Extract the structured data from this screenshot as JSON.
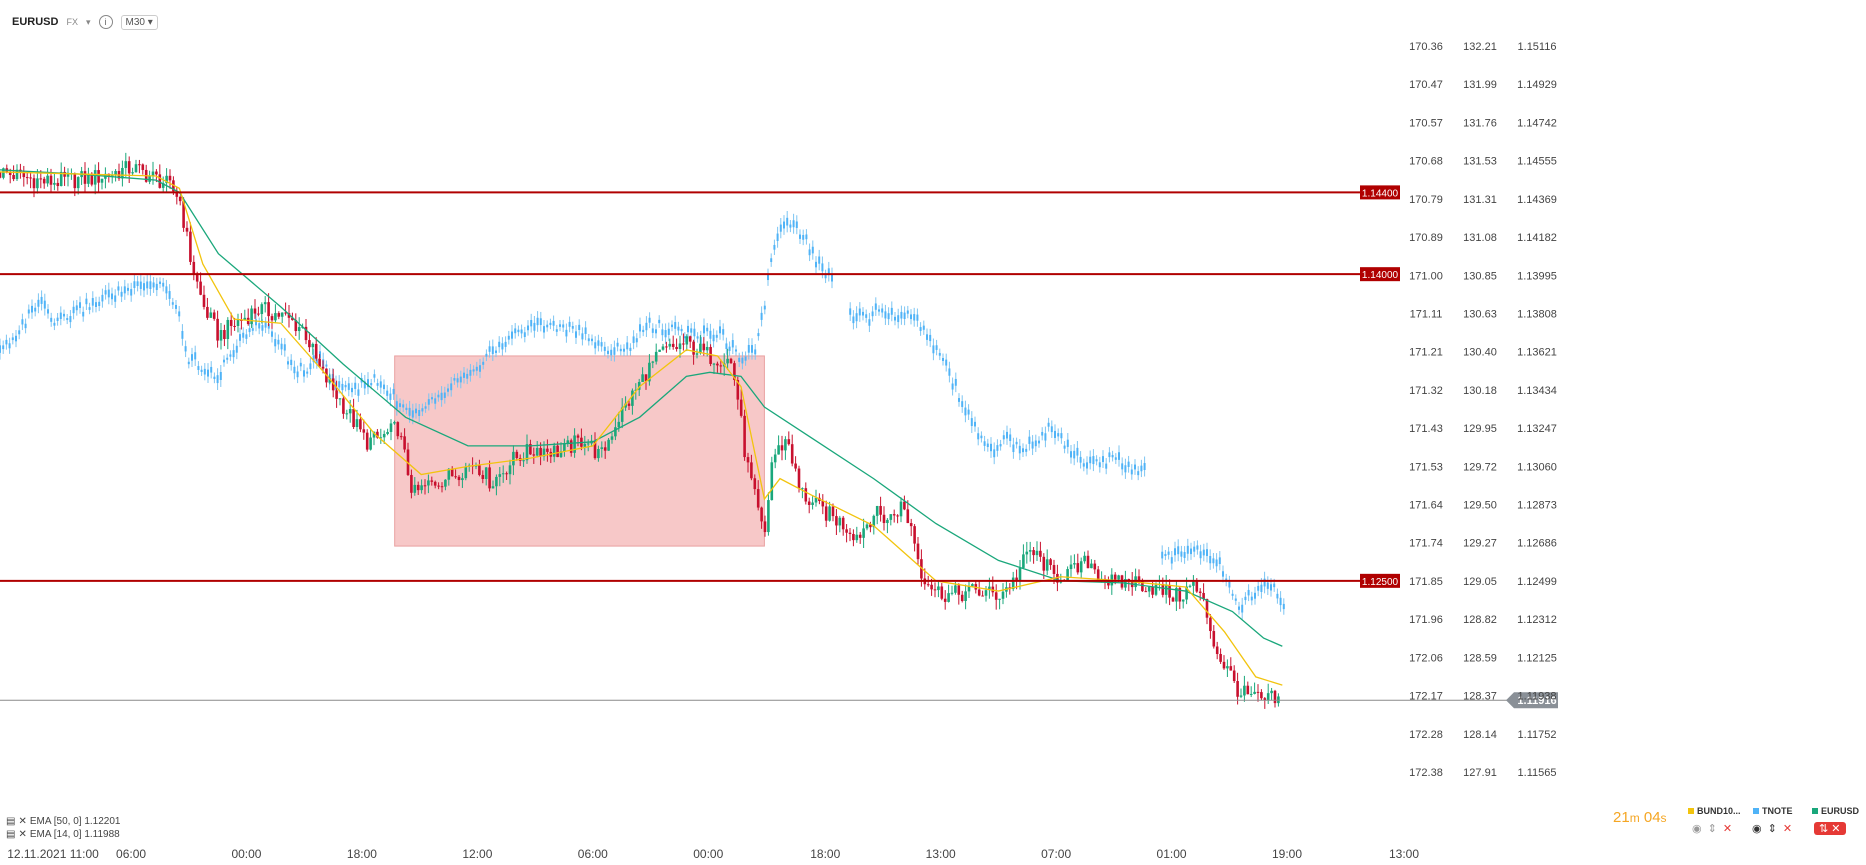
{
  "header": {
    "symbol": "EURUSD",
    "market": "FX",
    "info_icon": "info-icon",
    "timeframe": "M30"
  },
  "indicators": [
    {
      "label": "EMA [50, 0] 1.12201",
      "color": "#1aa77b"
    },
    {
      "label": "EMA [14, 0] 1.11988",
      "color": "#f2c40e"
    }
  ],
  "timer": {
    "minutes": "21",
    "m_unit": "m",
    "seconds": "04",
    "s_unit": "s"
  },
  "instruments": [
    {
      "name": "BUND10...",
      "color": "#f2c40e"
    },
    {
      "name": "TNOTE",
      "color": "#4fb3f7"
    },
    {
      "name": "EURUSD",
      "color": "#1aa77b"
    }
  ],
  "chart_data": {
    "type": "candlestick",
    "title": "",
    "x_tick_labels": [
      "12.11.2021  11:00",
      "06:00",
      "00:00",
      "18:00",
      "12:00",
      "06:00",
      "00:00",
      "18:00",
      "13:00",
      "07:00",
      "01:00",
      "19:00",
      "13:00"
    ],
    "y_axes": [
      {
        "name": "BUND10",
        "ticks": [
          "170.36",
          "170.47",
          "170.57",
          "170.68",
          "170.79",
          "170.89",
          "171.00",
          "171.11",
          "171.21",
          "171.32",
          "171.43",
          "171.53",
          "171.64",
          "171.74",
          "171.85",
          "171.96",
          "172.06",
          "172.17",
          "172.28",
          "172.38"
        ]
      },
      {
        "name": "TNOTE",
        "ticks": [
          "132.21",
          "131.99",
          "131.76",
          "131.53",
          "131.31",
          "131.08",
          "130.85",
          "130.63",
          "130.40",
          "130.18",
          "129.95",
          "129.72",
          "129.50",
          "129.27",
          "129.05",
          "128.82",
          "128.59",
          "128.37",
          "128.14",
          "127.91"
        ]
      },
      {
        "name": "EURUSD",
        "ticks": [
          "1.15116",
          "1.14929",
          "1.14742",
          "1.14555",
          "1.14369",
          "1.14182",
          "1.13995",
          "1.13808",
          "1.13621",
          "1.13434",
          "1.13247",
          "1.13060",
          "1.12873",
          "1.12686",
          "1.12499",
          "1.12312",
          "1.12125",
          "1.11938",
          "1.11752",
          "1.11565"
        ]
      }
    ],
    "eurusd_range": [
      1.11565,
      1.15116
    ],
    "horizontal_levels": [
      {
        "label": "1.14400",
        "value": 1.144,
        "color": "#b00000"
      },
      {
        "label": "1.14000",
        "value": 1.14,
        "color": "#b00000"
      },
      {
        "label": "1.12500",
        "value": 1.125,
        "color": "#b00000"
      }
    ],
    "current_price": {
      "label": "1.11916",
      "value": 1.11916
    },
    "highlight_zone": {
      "x_from": 0.253,
      "x_to": 0.49,
      "y_top": 1.136,
      "y_bottom": 1.1267
    },
    "eurusd_path": [
      [
        0,
        1.145
      ],
      [
        0.03,
        1.1445
      ],
      [
        0.06,
        1.1447
      ],
      [
        0.085,
        1.1452
      ],
      [
        0.105,
        1.1445
      ],
      [
        0.115,
        1.1438
      ],
      [
        0.122,
        1.1408
      ],
      [
        0.13,
        1.1385
      ],
      [
        0.14,
        1.137
      ],
      [
        0.155,
        1.1378
      ],
      [
        0.165,
        1.1383
      ],
      [
        0.18,
        1.138
      ],
      [
        0.195,
        1.1373
      ],
      [
        0.205,
        1.1353
      ],
      [
        0.215,
        1.1342
      ],
      [
        0.225,
        1.133
      ],
      [
        0.235,
        1.1318
      ],
      [
        0.245,
        1.132
      ],
      [
        0.255,
        1.1325
      ],
      [
        0.265,
        1.1292
      ],
      [
        0.275,
        1.1297
      ],
      [
        0.29,
        1.1302
      ],
      [
        0.305,
        1.1308
      ],
      [
        0.315,
        1.1298
      ],
      [
        0.33,
        1.131
      ],
      [
        0.345,
        1.1315
      ],
      [
        0.36,
        1.1313
      ],
      [
        0.375,
        1.132
      ],
      [
        0.385,
        1.131
      ],
      [
        0.395,
        1.1328
      ],
      [
        0.405,
        1.134
      ],
      [
        0.415,
        1.1353
      ],
      [
        0.425,
        1.1362
      ],
      [
        0.44,
        1.1366
      ],
      [
        0.455,
        1.136
      ],
      [
        0.468,
        1.1358
      ],
      [
        0.472,
        1.1345
      ],
      [
        0.478,
        1.131
      ],
      [
        0.484,
        1.129
      ],
      [
        0.49,
        1.127
      ],
      [
        0.495,
        1.131
      ],
      [
        0.505,
        1.132
      ],
      [
        0.512,
        1.1295
      ],
      [
        0.52,
        1.1288
      ],
      [
        0.53,
        1.1283
      ],
      [
        0.54,
        1.1278
      ],
      [
        0.55,
        1.1272
      ],
      [
        0.56,
        1.1283
      ],
      [
        0.57,
        1.128
      ],
      [
        0.578,
        1.1287
      ],
      [
        0.585,
        1.1275
      ],
      [
        0.59,
        1.1255
      ],
      [
        0.6,
        1.1245
      ],
      [
        0.61,
        1.1243
      ],
      [
        0.625,
        1.1245
      ],
      [
        0.64,
        1.1243
      ],
      [
        0.65,
        1.125
      ],
      [
        0.66,
        1.1265
      ],
      [
        0.67,
        1.1258
      ],
      [
        0.675,
        1.1252
      ],
      [
        0.69,
        1.1255
      ],
      [
        0.698,
        1.126
      ],
      [
        0.705,
        1.1253
      ],
      [
        0.715,
        1.1248
      ],
      [
        0.725,
        1.125
      ],
      [
        0.735,
        1.1248
      ],
      [
        0.745,
        1.1245
      ],
      [
        0.755,
        1.1242
      ],
      [
        0.765,
        1.1248
      ],
      [
        0.772,
        1.1238
      ],
      [
        0.78,
        1.1215
      ],
      [
        0.788,
        1.1205
      ],
      [
        0.795,
        1.1195
      ],
      [
        0.803,
        1.1193
      ],
      [
        0.81,
        1.1191
      ],
      [
        0.815,
        1.1192
      ],
      [
        0.82,
        1.1191
      ]
    ],
    "tnote_path": [
      [
        0,
        1.1362
      ],
      [
        0.015,
        1.1375
      ],
      [
        0.025,
        1.1387
      ],
      [
        0.035,
        1.1375
      ],
      [
        0.05,
        1.1382
      ],
      [
        0.07,
        1.139
      ],
      [
        0.09,
        1.1393
      ],
      [
        0.105,
        1.1395
      ],
      [
        0.113,
        1.1385
      ],
      [
        0.12,
        1.136
      ],
      [
        0.13,
        1.1355
      ],
      [
        0.14,
        1.135
      ],
      [
        0.155,
        1.137
      ],
      [
        0.17,
        1.1376
      ],
      [
        0.18,
        1.1365
      ],
      [
        0.19,
        1.1352
      ],
      [
        0.205,
        1.1358
      ],
      [
        0.215,
        1.1347
      ],
      [
        0.225,
        1.1343
      ],
      [
        0.24,
        1.1348
      ],
      [
        0.255,
        1.1338
      ],
      [
        0.265,
        1.1333
      ],
      [
        0.28,
        1.134
      ],
      [
        0.295,
        1.135
      ],
      [
        0.31,
        1.1358
      ],
      [
        0.325,
        1.1368
      ],
      [
        0.34,
        1.1375
      ],
      [
        0.355,
        1.1375
      ],
      [
        0.37,
        1.1372
      ],
      [
        0.385,
        1.1365
      ],
      [
        0.4,
        1.1362
      ],
      [
        0.415,
        1.1375
      ],
      [
        0.43,
        1.1373
      ],
      [
        0.445,
        1.137
      ],
      [
        0.46,
        1.1372
      ],
      [
        0.475,
        1.136
      ],
      [
        0.485,
        1.1363
      ],
      [
        0.49,
        1.1385
      ],
      [
        0.495,
        1.141
      ],
      [
        0.5,
        1.142
      ],
      [
        0.507,
        1.1425
      ],
      [
        0.515,
        1.1418
      ],
      [
        0.525,
        1.1405
      ],
      [
        0.535,
        1.1395
      ]
    ],
    "tnote_path_2": [
      [
        0.545,
        1.138
      ],
      [
        0.555,
        1.1378
      ],
      [
        0.565,
        1.1383
      ],
      [
        0.575,
        1.1377
      ],
      [
        0.585,
        1.1382
      ],
      [
        0.595,
        1.137
      ],
      [
        0.605,
        1.1358
      ],
      [
        0.615,
        1.134
      ],
      [
        0.625,
        1.1325
      ],
      [
        0.635,
        1.1313
      ],
      [
        0.645,
        1.132
      ],
      [
        0.655,
        1.1312
      ],
      [
        0.665,
        1.132
      ],
      [
        0.675,
        1.1325
      ],
      [
        0.685,
        1.1315
      ],
      [
        0.695,
        1.1308
      ],
      [
        0.705,
        1.1307
      ],
      [
        0.715,
        1.131
      ],
      [
        0.725,
        1.1305
      ],
      [
        0.735,
        1.1305
      ]
    ],
    "tnote_path_3": [
      [
        0.745,
        1.126
      ],
      [
        0.755,
        1.1263
      ],
      [
        0.765,
        1.1268
      ],
      [
        0.775,
        1.1262
      ],
      [
        0.785,
        1.1255
      ],
      [
        0.79,
        1.1245
      ],
      [
        0.795,
        1.1237
      ],
      [
        0.8,
        1.1242
      ],
      [
        0.81,
        1.125
      ],
      [
        0.816,
        1.1247
      ],
      [
        0.823,
        1.124
      ]
    ],
    "ema50_path": [
      [
        0,
        1.1451
      ],
      [
        0.05,
        1.1449
      ],
      [
        0.1,
        1.1446
      ],
      [
        0.115,
        1.144
      ],
      [
        0.14,
        1.141
      ],
      [
        0.18,
        1.1384
      ],
      [
        0.22,
        1.1356
      ],
      [
        0.26,
        1.133
      ],
      [
        0.3,
        1.1316
      ],
      [
        0.34,
        1.1316
      ],
      [
        0.38,
        1.1318
      ],
      [
        0.41,
        1.133
      ],
      [
        0.44,
        1.135
      ],
      [
        0.455,
        1.1352
      ],
      [
        0.475,
        1.135
      ],
      [
        0.49,
        1.1335
      ],
      [
        0.52,
        1.132
      ],
      [
        0.56,
        1.13
      ],
      [
        0.6,
        1.1278
      ],
      [
        0.64,
        1.126
      ],
      [
        0.68,
        1.125
      ],
      [
        0.72,
        1.1249
      ],
      [
        0.76,
        1.1245
      ],
      [
        0.79,
        1.1235
      ],
      [
        0.81,
        1.1222
      ],
      [
        0.822,
        1.1218
      ]
    ],
    "ema14_path": [
      [
        0,
        1.145
      ],
      [
        0.1,
        1.1448
      ],
      [
        0.115,
        1.1442
      ],
      [
        0.13,
        1.1405
      ],
      [
        0.15,
        1.1378
      ],
      [
        0.18,
        1.1376
      ],
      [
        0.21,
        1.135
      ],
      [
        0.24,
        1.1322
      ],
      [
        0.27,
        1.1302
      ],
      [
        0.3,
        1.1306
      ],
      [
        0.34,
        1.131
      ],
      [
        0.38,
        1.1316
      ],
      [
        0.41,
        1.1345
      ],
      [
        0.44,
        1.1363
      ],
      [
        0.46,
        1.136
      ],
      [
        0.475,
        1.1345
      ],
      [
        0.49,
        1.129
      ],
      [
        0.5,
        1.13
      ],
      [
        0.52,
        1.1292
      ],
      [
        0.56,
        1.1277
      ],
      [
        0.6,
        1.125
      ],
      [
        0.64,
        1.1245
      ],
      [
        0.68,
        1.1252
      ],
      [
        0.72,
        1.125
      ],
      [
        0.76,
        1.1247
      ],
      [
        0.785,
        1.1225
      ],
      [
        0.805,
        1.1203
      ],
      [
        0.822,
        1.1199
      ]
    ]
  }
}
